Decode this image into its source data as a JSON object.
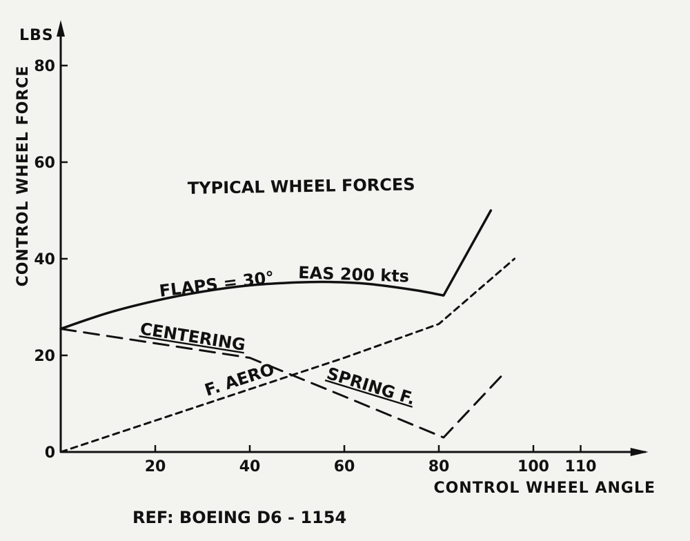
{
  "chart_data": {
    "type": "line",
    "title": "TYPICAL WHEEL FORCES",
    "xlabel": "CONTROL WHEEL ANGLE",
    "ylabel": "CONTROL WHEEL FORCE",
    "yunit": "LBS",
    "xlim": [
      0,
      115
    ],
    "ylim": [
      0,
      85
    ],
    "x_ticks": [
      20,
      40,
      60,
      80,
      100,
      110
    ],
    "y_ticks": [
      0,
      20,
      40,
      60,
      80
    ],
    "grid": false,
    "series": [
      {
        "name": "FLAPS = 30°   EAS  200 kts",
        "style": "solid",
        "x": [
          0,
          10,
          20,
          30,
          40,
          50,
          57,
          65,
          75,
          81,
          91
        ],
        "y": [
          25.5,
          28.8,
          31.3,
          33.2,
          34.5,
          35.1,
          35.2,
          34.8,
          33.5,
          32.4,
          50.0
        ]
      },
      {
        "name": "CENTERING SPRING F.",
        "style": "dashed",
        "x": [
          0,
          20,
          40,
          60,
          81,
          93.5
        ],
        "y": [
          25.5,
          22.5,
          19.5,
          11.5,
          3.0,
          16.0
        ]
      },
      {
        "name": "F. AERO",
        "style": "dotted",
        "x": [
          0,
          20,
          40,
          60,
          80,
          96
        ],
        "y": [
          0,
          6.5,
          13.0,
          19.5,
          26.5,
          40.0
        ]
      }
    ],
    "annotations": {
      "flaps": "FLAPS = 30°",
      "eas": "EAS  200 kts",
      "centering": "CENTERING",
      "spring": "SPRING  F.",
      "aero": "F. AERO"
    },
    "reference": "REF: BOEING  D6 - 1154"
  }
}
